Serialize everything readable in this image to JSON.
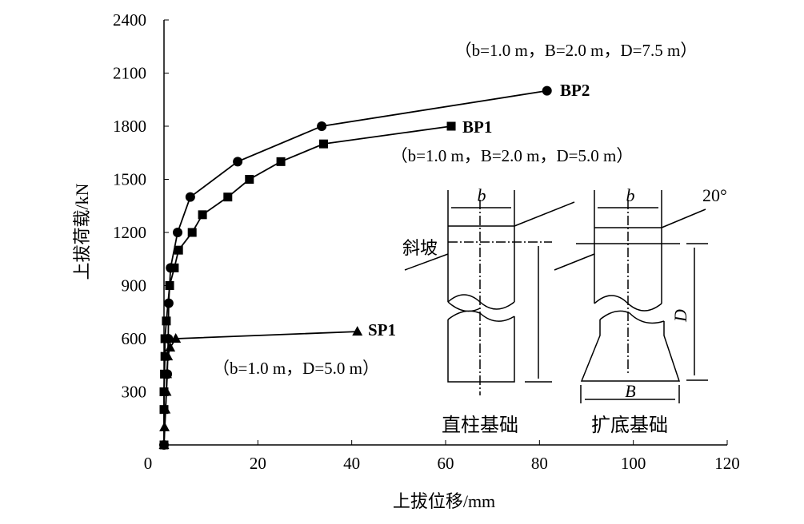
{
  "chart_data": {
    "type": "line",
    "title": "",
    "xlabel": "上拔位移/mm",
    "ylabel": "上拔荷载/kN",
    "xlim": [
      0,
      120
    ],
    "ylim": [
      0,
      2400
    ],
    "xticks": [
      0,
      20,
      40,
      60,
      80,
      100,
      120
    ],
    "yticks": [
      300,
      600,
      900,
      1200,
      1500,
      1800,
      2100,
      2400
    ],
    "grid": false,
    "series": [
      {
        "name": "BP2",
        "marker": "circle",
        "note": "（b=1.0 m，B=2.0 m，D=7.5 m）",
        "x": [
          0,
          0.7,
          0.9,
          1.0,
          1.4,
          2.9,
          5.6,
          15.7,
          33.6,
          81.6
        ],
        "y": [
          0,
          400,
          600,
          800,
          1000,
          1200,
          1400,
          1600,
          1800,
          2000
        ]
      },
      {
        "name": "BP1",
        "marker": "square",
        "note": "（b=1.0 m，B=2.0 m，D=5.0 m）",
        "x": [
          0,
          0,
          0,
          0.1,
          0.2,
          0.2,
          0.5,
          1.2,
          2.2,
          3.1,
          6.0,
          8.2,
          13.6,
          18.2,
          24.9,
          34.0,
          61.2
        ],
        "y": [
          0,
          200,
          300,
          400,
          500,
          600,
          700,
          900,
          1000,
          1100,
          1200,
          1300,
          1400,
          1500,
          1600,
          1700,
          1800
        ]
      },
      {
        "name": "SP1",
        "marker": "triangle",
        "note": "（b=1.0 m，D=5.0 m）",
        "x": [
          0,
          0.1,
          0.3,
          0.5,
          0.6,
          0.8,
          1.3,
          2.5,
          41.2
        ],
        "y": [
          0,
          100,
          200,
          300,
          400,
          500,
          550,
          600,
          640
        ]
      }
    ]
  },
  "inset": {
    "left_label": "直柱基础",
    "right_label": "扩底基础",
    "slope_label": "斜坡",
    "angle_label": "20°",
    "b_label": "b",
    "B_label": "B",
    "D_label": "D"
  }
}
